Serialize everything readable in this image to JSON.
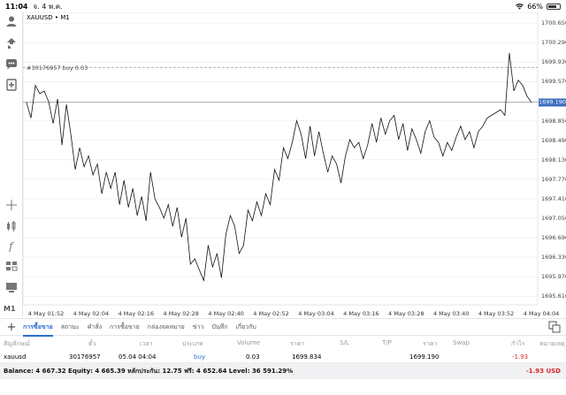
{
  "status_bar": {
    "time": "11:04",
    "date": "จ. 4 พ.ค.",
    "battery": "66%"
  },
  "chart": {
    "symbol": "XAUUSD • M1",
    "order_line_label": "#30176957 buy 0.03",
    "current_price": "1699.190",
    "y_ticks": [
      "1700.650",
      "1700.290",
      "1699.930",
      "1699.570",
      "1698.850",
      "1698.490",
      "1698.130",
      "1697.770",
      "1697.410",
      "1697.050",
      "1696.690",
      "1696.330",
      "1695.970",
      "1695.610"
    ],
    "x_ticks": [
      "4 May 01:52",
      "4 May 02:04",
      "4 May 02:16",
      "4 May 02:28",
      "4 May 02:40",
      "4 May 02:52",
      "4 May 03:04",
      "4 May 03:16",
      "4 May 03:28",
      "4 May 03:40",
      "4 May 03:52",
      "4 May 04:04"
    ]
  },
  "left_toolbar": {
    "timeframe": "M1"
  },
  "tabs": [
    {
      "label": "การซื้อขาย",
      "active": true
    },
    {
      "label": "สถานะ",
      "active": false
    },
    {
      "label": "คำสั่ง",
      "active": false
    },
    {
      "label": "การซื้อขาย",
      "active": false
    },
    {
      "label": "กล่องจดหมาย",
      "active": false
    },
    {
      "label": "ข่าว",
      "active": false
    },
    {
      "label": "บันทึก",
      "active": false
    },
    {
      "label": "เกี่ยวกับ",
      "active": false
    }
  ],
  "table": {
    "headers": {
      "symbol": "สัญลักษณ์",
      "ticket": "ตั๋ว",
      "time": "เวลา",
      "type": "ประเภท",
      "volume": "Volume",
      "price": "ราคา",
      "sl": "S/L",
      "tp": "T/P",
      "price2": "ราคา",
      "swap": "Swap",
      "profit": "กำไร",
      "comment": "หมายเหตุ"
    },
    "rows": [
      {
        "symbol": "xauusd",
        "ticket": "30176957",
        "time": "05.04 04:04",
        "type": "buy",
        "volume": "0.03",
        "price": "1699.834",
        "sl": "",
        "tp": "",
        "price2": "1699.190",
        "swap": "",
        "profit": "-1.93",
        "comment": ""
      }
    ]
  },
  "footer": {
    "summary": "Balance: 4 667.32 Equity: 4 665.39 หลักประกัน: 12.75 ฟรี: 4 652.64 Level: 36 591.29%",
    "total": "-1.93",
    "currency": "USD"
  },
  "chart_data": {
    "type": "line",
    "title": "XAUUSD • M1",
    "xlabel": "",
    "ylabel": "",
    "ylim": [
      1695.45,
      1700.85
    ],
    "x_labels": [
      "4 May 01:52",
      "4 May 02:04",
      "4 May 02:16",
      "4 May 02:28",
      "4 May 02:40",
      "4 May 02:52",
      "4 May 03:04",
      "4 May 03:16",
      "4 May 03:28",
      "4 May 03:40",
      "4 May 03:52",
      "4 May 04:04"
    ],
    "reference_lines": [
      {
        "label": "#30176957 buy 0.03",
        "value": 1699.834
      },
      {
        "label": "current",
        "value": 1699.19
      }
    ],
    "series": [
      {
        "values": [
          1699.19,
          1698.9,
          1699.5,
          1699.35,
          1699.4,
          1699.2,
          1698.8,
          1699.25,
          1698.4,
          1699.15,
          1698.6,
          1697.95,
          1698.35,
          1698.0,
          1698.2,
          1697.85,
          1698.05,
          1697.5,
          1697.9,
          1697.6,
          1697.9,
          1697.3,
          1697.75,
          1697.25,
          1697.6,
          1697.1,
          1697.45,
          1697.0,
          1697.9,
          1697.4,
          1697.25,
          1697.05,
          1697.3,
          1696.9,
          1697.25,
          1696.7,
          1697.05,
          1696.2,
          1696.3,
          1696.1,
          1695.9,
          1696.55,
          1696.15,
          1696.4,
          1695.95,
          1696.75,
          1697.1,
          1696.9,
          1696.4,
          1696.55,
          1697.2,
          1697.0,
          1697.35,
          1697.1,
          1697.5,
          1697.3,
          1697.95,
          1697.75,
          1698.35,
          1698.15,
          1698.45,
          1698.85,
          1698.6,
          1698.15,
          1698.75,
          1698.2,
          1698.65,
          1698.25,
          1697.9,
          1698.2,
          1698.05,
          1697.7,
          1698.2,
          1698.5,
          1698.35,
          1698.45,
          1698.15,
          1698.4,
          1698.8,
          1698.45,
          1698.9,
          1698.6,
          1698.85,
          1698.95,
          1698.5,
          1698.8,
          1698.3,
          1698.7,
          1698.5,
          1698.25,
          1698.65,
          1698.85,
          1698.55,
          1698.45,
          1698.2,
          1698.45,
          1698.3,
          1698.55,
          1698.75,
          1698.5,
          1698.65,
          1698.35,
          1698.65,
          1698.75,
          1698.9,
          1698.95,
          1699.0,
          1699.05,
          1698.95,
          1700.1,
          1699.4,
          1699.6,
          1699.5,
          1699.3,
          1699.19
        ]
      }
    ]
  }
}
